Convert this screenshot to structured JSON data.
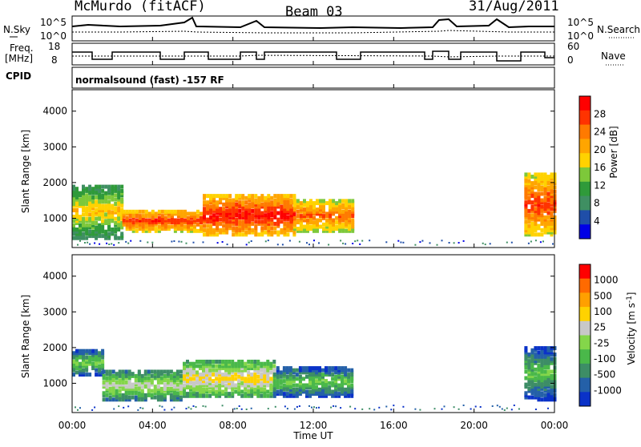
{
  "header": {
    "station": "McMurdo (fitACF)",
    "beam": "Beam 03",
    "date": "31/Aug/2011"
  },
  "noise_panel": {
    "left_label": "N.Sky",
    "right_label": "N.Search",
    "left_ticks": [
      "10^5",
      "10^0"
    ],
    "right_ticks": [
      "10^5",
      "10^0"
    ]
  },
  "freq_panel": {
    "left_label_1": "Freq.",
    "left_label_2": "[MHz]",
    "right_label": "Nave",
    "left_ticks": [
      "18",
      "8"
    ],
    "right_ticks": [
      "60",
      "0"
    ]
  },
  "cpid": {
    "label": "CPID",
    "mode": "normalsound (fast) -157 RF"
  },
  "power_panel": {
    "ylabel": "Slant Range [km]",
    "yticks": [
      "1000",
      "2000",
      "3000",
      "4000"
    ],
    "colorbar_label": "Power [dB]",
    "colorbar_ticks": [
      "4",
      "8",
      "12",
      "16",
      "20",
      "24",
      "28"
    ],
    "colors": [
      "#0000e6",
      "#1f4ea8",
      "#3f8f62",
      "#2f9a3a",
      "#7dc83a",
      "#ffd200",
      "#ffa500",
      "#ff7a00",
      "#ff3300",
      "#ff0000"
    ]
  },
  "velocity_panel": {
    "ylabel": "Slant Range [km]",
    "yticks": [
      "1000",
      "2000",
      "3000",
      "4000"
    ],
    "colorbar_label": "Velocity [m s",
    "colorbar_label_sup": "-1",
    "colorbar_label_end": "]",
    "colorbar_ticks": [
      "1000",
      "500",
      "100",
      "25",
      "-25",
      "-100",
      "-500",
      "-1000"
    ],
    "colors": [
      "#0a32c8",
      "#2460a8",
      "#3d8d66",
      "#4ab84a",
      "#84d64a",
      "#c8c8c8",
      "#ffd200",
      "#ffa000",
      "#ff6a00",
      "#ff0000"
    ]
  },
  "xaxis": {
    "label": "Time UT",
    "ticks": [
      "00:00",
      "04:00",
      "08:00",
      "12:00",
      "16:00",
      "20:00",
      "00:00"
    ]
  },
  "chart_data": {
    "type": "heatmap",
    "title": "McMurdo (fitACF) Beam 03 31/Aug/2011",
    "xlabel": "Time UT",
    "ylabel": "Slant Range [km]",
    "xlim": [
      "00:00",
      "24:00"
    ],
    "ylim": [
      180,
      4600
    ],
    "panels": [
      {
        "name": "Power [dB]",
        "scale": [
          0,
          30
        ],
        "regions": [
          {
            "t0": 0.0,
            "t1": 2.5,
            "r0": 500,
            "r1": 2000,
            "value": 18
          },
          {
            "t0": 2.5,
            "t1": 6.5,
            "r0": 700,
            "r1": 1300,
            "value": 26
          },
          {
            "t0": 6.5,
            "t1": 11.0,
            "r0": 600,
            "r1": 1700,
            "value": 28
          },
          {
            "t0": 11.0,
            "t1": 14.0,
            "r0": 700,
            "r1": 1600,
            "value": 24
          },
          {
            "t0": 22.5,
            "t1": 24.0,
            "r0": 600,
            "r1": 2300,
            "value": 26
          }
        ]
      },
      {
        "name": "Velocity [m s-1]",
        "scale": [
          -1000,
          1000
        ],
        "regions": [
          {
            "t0": 0.0,
            "t1": 1.5,
            "r0": 1300,
            "r1": 2000,
            "value": -100
          },
          {
            "t0": 1.5,
            "t1": 5.5,
            "r0": 600,
            "r1": 1400,
            "value": 100
          },
          {
            "t0": 5.5,
            "t1": 10.0,
            "r0": 700,
            "r1": 1700,
            "value": 300
          },
          {
            "t0": 10.0,
            "t1": 14.0,
            "r0": 700,
            "r1": 1500,
            "value": -150
          },
          {
            "t0": 22.5,
            "t1": 24.0,
            "r0": 600,
            "r1": 2100,
            "value": -200
          }
        ]
      }
    ]
  }
}
